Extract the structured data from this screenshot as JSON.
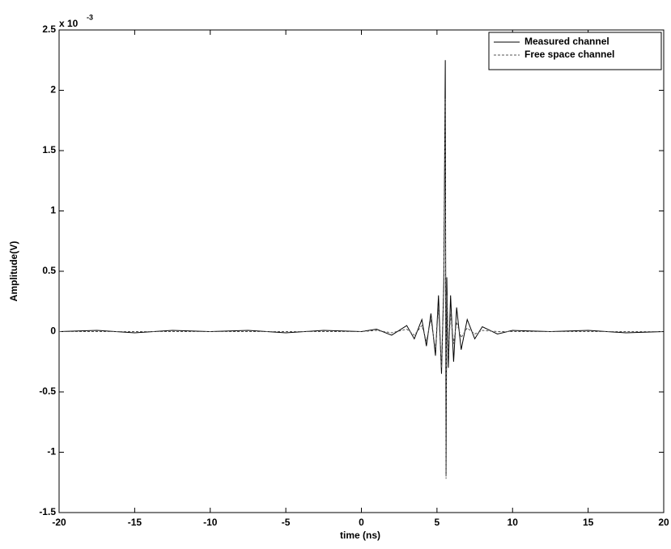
{
  "chart_data": {
    "type": "line",
    "x_label": "time (ns)",
    "y_label": "Amplitude(V)",
    "y_multiplier": {
      "base": "x 10",
      "exponent": "-3"
    },
    "x": [
      -20,
      -17.5,
      -15,
      -12.5,
      -10,
      -7.5,
      -5,
      -2.5,
      0,
      1,
      2,
      3,
      3.5,
      4,
      4.3,
      4.6,
      4.9,
      5.1,
      5.3,
      5.45,
      5.55,
      5.6,
      5.65,
      5.75,
      5.9,
      6.1,
      6.3,
      6.6,
      7,
      7.5,
      8,
      9,
      10,
      12.5,
      15,
      17.5,
      20
    ],
    "series": [
      {
        "name": "Measured channel",
        "color": "#000000",
        "dash": "none",
        "values": [
          0,
          0.01,
          -0.01,
          0.01,
          0,
          0.01,
          -0.01,
          0.01,
          0,
          0.02,
          -0.03,
          0.05,
          -0.06,
          0.1,
          -0.12,
          0.15,
          -0.2,
          0.3,
          -0.35,
          0.4,
          2.25,
          -1.2,
          0.45,
          -0.3,
          0.3,
          -0.25,
          0.2,
          -0.15,
          0.1,
          -0.06,
          0.04,
          -0.02,
          0.01,
          0,
          0.01,
          -0.01,
          0
        ]
      },
      {
        "name": "Free space channel",
        "color": "#555555",
        "dash": "3,2",
        "values": [
          0,
          0,
          0,
          0,
          0,
          0,
          0,
          0,
          0,
          0.01,
          -0.01,
          0.02,
          -0.03,
          0.05,
          -0.08,
          0.1,
          -0.15,
          0.2,
          -0.3,
          0.35,
          1.93,
          -1.22,
          0.3,
          -0.2,
          0.15,
          -0.1,
          0.08,
          -0.05,
          0.03,
          -0.02,
          0.01,
          0,
          0,
          0,
          0,
          0,
          0
        ]
      }
    ],
    "xlim": [
      -20,
      20
    ],
    "xticks": [
      -20,
      -15,
      -10,
      -5,
      0,
      5,
      10,
      15,
      20
    ],
    "ylim": [
      -1.5,
      2.5
    ],
    "yticks": [
      -1.5,
      -1,
      -0.5,
      0,
      0.5,
      1,
      1.5,
      2,
      2.5
    ],
    "grid": false,
    "legend": "top-right"
  }
}
